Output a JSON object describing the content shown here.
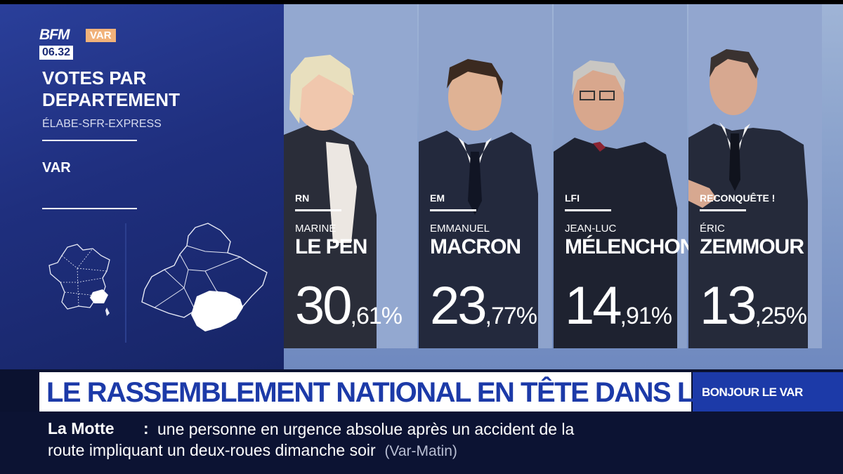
{
  "channel": {
    "logo": "BFM",
    "region": "VAR",
    "time": "06.32"
  },
  "panel": {
    "title": "VOTES PAR DEPARTEMENT",
    "source": "ÉLABE-SFR-EXPRESS",
    "department": "VAR"
  },
  "candidates": [
    {
      "party": "RN",
      "first_name": "MARINE",
      "last_name": "LE PEN",
      "pct_int": "30",
      "pct_dec": ",61%",
      "percent": 30.61
    },
    {
      "party": "EM",
      "first_name": "EMMANUEL",
      "last_name": "MACRON",
      "pct_int": "23",
      "pct_dec": ",77%",
      "percent": 23.77
    },
    {
      "party": "LFI",
      "first_name": "JEAN-LUC",
      "last_name": "MÉLENCHON",
      "pct_int": "14",
      "pct_dec": ",91%",
      "percent": 14.91
    },
    {
      "party": "RECONQUÊTE !",
      "first_name": "ÉRIC",
      "last_name": "ZEMMOUR",
      "pct_int": "13",
      "pct_dec": ",25%",
      "percent": 13.25
    }
  ],
  "headline": "LE RASSEMBLEMENT NATIONAL EN TÊTE DANS LE VAR",
  "show": "BONJOUR LE VAR",
  "ticker": {
    "place": "La Motte",
    "colon": ":",
    "line1": "une personne en urgence absolue après un accident de la",
    "line2": "route impliquant un deux-roues dimanche soir",
    "source": "(Var-Matin)"
  }
}
